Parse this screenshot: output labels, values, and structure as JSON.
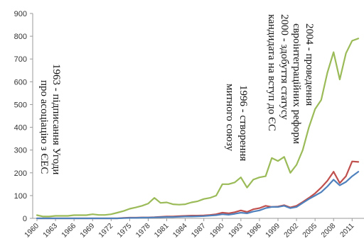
{
  "chart_data": {
    "type": "line",
    "title": "",
    "xlabel": "",
    "ylabel": "",
    "ylim": [
      0,
      900
    ],
    "xlim": [
      1960,
      2012
    ],
    "grid": false,
    "legend": "none",
    "y_ticks": [
      "0",
      "100",
      "200",
      "300",
      "400",
      "500",
      "600",
      "700",
      "800",
      "900"
    ],
    "x_ticks": [
      "1960",
      "1963",
      "1966",
      "1969",
      "1972",
      "1975",
      "1978",
      "1981",
      "1984",
      "1987",
      "1990",
      "1993",
      "1996",
      "1999",
      "2002",
      "2005",
      "2008",
      "2011"
    ],
    "x": [
      1960,
      1961,
      1962,
      1963,
      1964,
      1965,
      1966,
      1967,
      1968,
      1969,
      1970,
      1971,
      1972,
      1973,
      1974,
      1975,
      1976,
      1977,
      1978,
      1979,
      1980,
      1981,
      1982,
      1983,
      1984,
      1985,
      1986,
      1987,
      1988,
      1989,
      1990,
      1991,
      1992,
      1993,
      1994,
      1995,
      1996,
      1997,
      1998,
      1999,
      2000,
      2001,
      2002,
      2003,
      2004,
      2005,
      2006,
      2007,
      2008,
      2009,
      2010,
      2011,
      2012
    ],
    "series": [
      {
        "color": "#9bbb59",
        "values": [
          14,
          8,
          8,
          11,
          11,
          11,
          14,
          14,
          14,
          18,
          15,
          15,
          18,
          25,
          32,
          42,
          48,
          55,
          65,
          90,
          68,
          70,
          62,
          60,
          62,
          70,
          75,
          85,
          90,
          100,
          150,
          150,
          158,
          180,
          135,
          170,
          180,
          185,
          265,
          252,
          270,
          200,
          235,
          300,
          400,
          480,
          520,
          640,
          730,
          610,
          725,
          780,
          790
        ]
      },
      {
        "color": "#c0504d",
        "values": [
          0,
          0,
          0,
          0,
          0,
          0,
          0,
          0,
          0,
          0,
          0,
          0,
          0,
          0,
          2,
          3,
          3,
          4,
          4,
          5,
          7,
          8,
          8,
          10,
          11,
          12,
          12,
          13,
          15,
          18,
          25,
          22,
          27,
          35,
          28,
          40,
          45,
          55,
          50,
          52,
          58,
          48,
          55,
          72,
          90,
          110,
          135,
          165,
          205,
          155,
          185,
          250,
          248
        ]
      },
      {
        "color": "#4f81bd",
        "values": [
          0,
          0,
          0,
          0,
          0,
          0,
          0,
          0,
          0,
          0,
          0,
          0,
          0,
          0,
          1,
          2,
          2,
          3,
          3,
          4,
          5,
          6,
          6,
          7,
          8,
          8,
          9,
          10,
          12,
          14,
          18,
          16,
          20,
          25,
          22,
          30,
          35,
          45,
          50,
          50,
          55,
          45,
          50,
          68,
          85,
          100,
          115,
          140,
          170,
          145,
          160,
          185,
          205
        ]
      }
    ],
    "annotations": [
      {
        "text": "1963 - підписання Угоди",
        "x": 1963
      },
      {
        "text": "про асоціацію з ЄЕС",
        "x": 1963
      },
      {
        "text": "1996 - створення",
        "x": 1996
      },
      {
        "text": "митного союзу",
        "x": 1996
      },
      {
        "text": "2000 - здобуття статусу",
        "x": 2000
      },
      {
        "text": "кандидата на вступ до ЄС",
        "x": 2000
      },
      {
        "text": "2004 - проведення",
        "x": 2004
      },
      {
        "text": "євроінтеграційних реформ",
        "x": 2004
      }
    ]
  }
}
